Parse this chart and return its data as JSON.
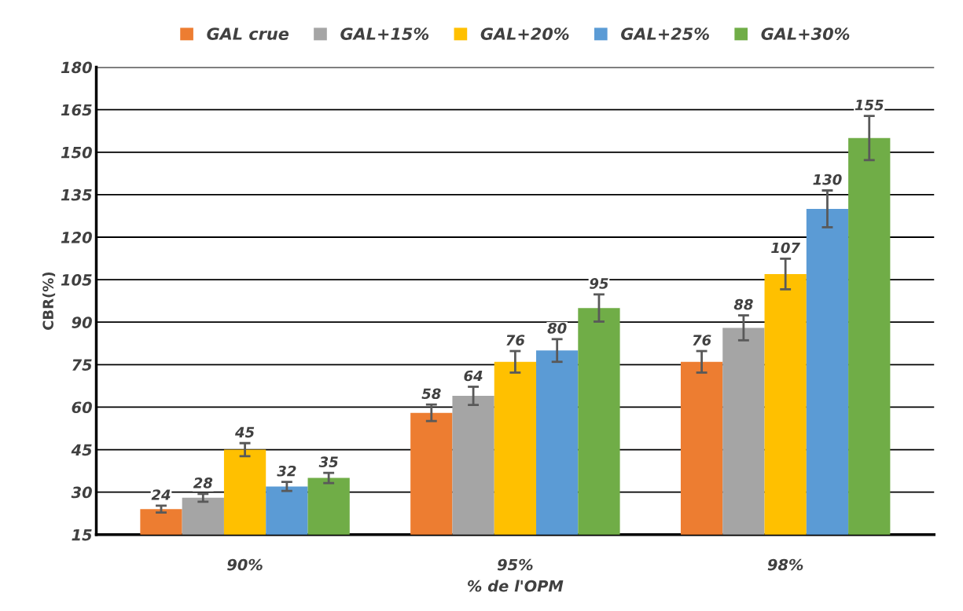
{
  "chart_data": {
    "type": "bar",
    "xlabel": "% de l'OPM",
    "ylabel": "CBR(%)",
    "categories": [
      "90%",
      "95%",
      "98%"
    ],
    "series": [
      {
        "name": "GAL crue",
        "color": "#ed7d31",
        "values": [
          24,
          58,
          76
        ],
        "errors": [
          1.2,
          2.9,
          3.8
        ]
      },
      {
        "name": "GAL+15%",
        "color": "#a5a5a5",
        "values": [
          28,
          64,
          88
        ],
        "errors": [
          1.4,
          3.2,
          4.4
        ]
      },
      {
        "name": "GAL+20%",
        "color": "#ffc000",
        "values": [
          45,
          76,
          107
        ],
        "errors": [
          2.3,
          3.8,
          5.4
        ]
      },
      {
        "name": "GAL+25%",
        "color": "#5b9bd5",
        "values": [
          32,
          80,
          130
        ],
        "errors": [
          1.6,
          4.0,
          6.5
        ]
      },
      {
        "name": "GAL+30%",
        "color": "#70ad47",
        "values": [
          35,
          95,
          155
        ],
        "errors": [
          1.8,
          4.8,
          7.8
        ]
      }
    ],
    "ylim": [
      15,
      180
    ],
    "yticks": [
      15,
      30,
      45,
      60,
      75,
      90,
      105,
      120,
      135,
      150,
      165,
      180
    ],
    "grid": "y",
    "legend": "top",
    "data_labels": true
  }
}
